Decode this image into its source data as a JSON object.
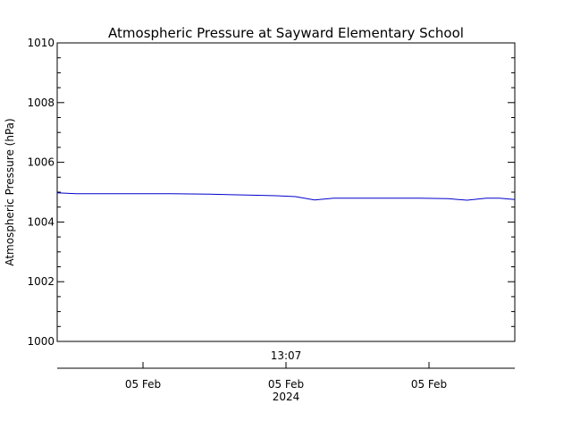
{
  "chart_data": {
    "type": "line",
    "title": "Atmospheric Pressure at Sayward Elementary School",
    "ylabel": "Atmospheric Pressure (hPa)",
    "xlabel": "",
    "ylim": [
      1000,
      1010
    ],
    "y_ticks": [
      "1000",
      "1002",
      "1004",
      "1006",
      "1008",
      "1010"
    ],
    "x_range_hours": [
      0,
      24
    ],
    "x_time_label": "13:07",
    "x_ticks": [
      {
        "label": "05 Feb",
        "hour": 4.5
      },
      {
        "label": "05 Feb",
        "hour": 12.0
      },
      {
        "label": "05 Feb",
        "hour": 19.5
      }
    ],
    "x_year_label": "2024",
    "grid": false,
    "line_color": "#0000cc",
    "series": [
      {
        "x": [
          0.0,
          1.0,
          3.0,
          6.0,
          8.0,
          10.0,
          11.5,
          12.5,
          13.5,
          14.5,
          15.5,
          17.0,
          19.0,
          20.5,
          21.5,
          22.5,
          23.2,
          24.0
        ],
        "values": [
          1004.98,
          1004.95,
          1004.95,
          1004.95,
          1004.93,
          1004.9,
          1004.88,
          1004.85,
          1004.74,
          1004.8,
          1004.8,
          1004.8,
          1004.8,
          1004.78,
          1004.73,
          1004.8,
          1004.8,
          1004.75
        ]
      }
    ]
  }
}
